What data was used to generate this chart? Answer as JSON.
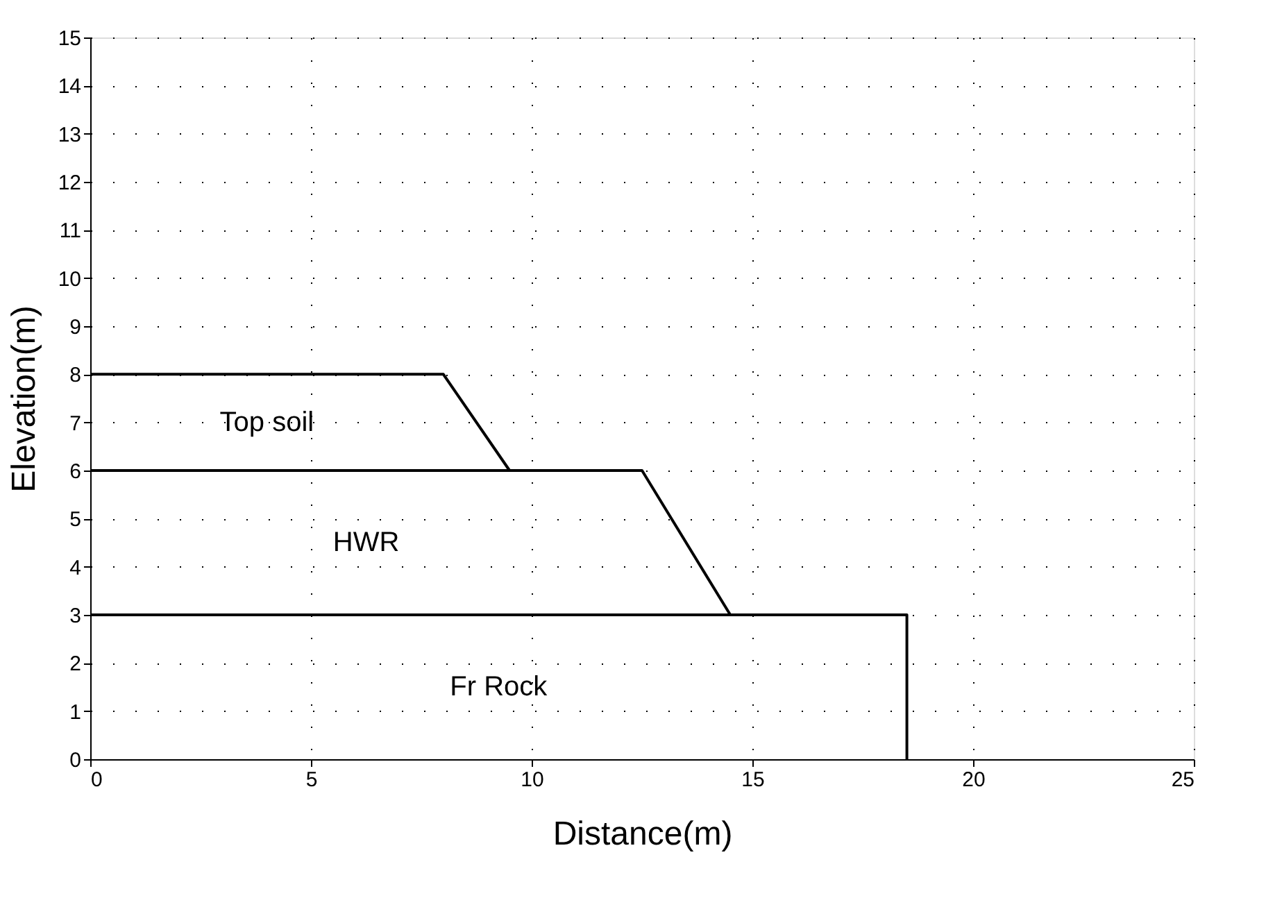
{
  "chart_data": {
    "type": "line",
    "xlabel": "Distance(m)",
    "ylabel": "Elevation(m)",
    "xlim": [
      0,
      25
    ],
    "ylim": [
      0,
      15
    ],
    "xticks": [
      0,
      5,
      10,
      15,
      20,
      25
    ],
    "yticks": [
      0,
      1,
      2,
      3,
      4,
      5,
      6,
      7,
      8,
      9,
      10,
      11,
      12,
      13,
      14,
      15
    ],
    "grid": true,
    "legend": false,
    "marker": "none",
    "line_style": "solid",
    "series": [
      {
        "color": "#000000",
        "x": [
          0,
          8,
          9.5
        ],
        "values": [
          8,
          8,
          6
        ]
      },
      {
        "color": "#000000",
        "x": [
          0,
          12.5,
          14.5
        ],
        "values": [
          6,
          6,
          3
        ]
      },
      {
        "color": "#000000",
        "x": [
          0,
          18.5,
          18.5
        ],
        "values": [
          3,
          3,
          0
        ]
      }
    ],
    "annotations": [
      "Top soil",
      "HWR",
      "Fr Rock"
    ]
  }
}
